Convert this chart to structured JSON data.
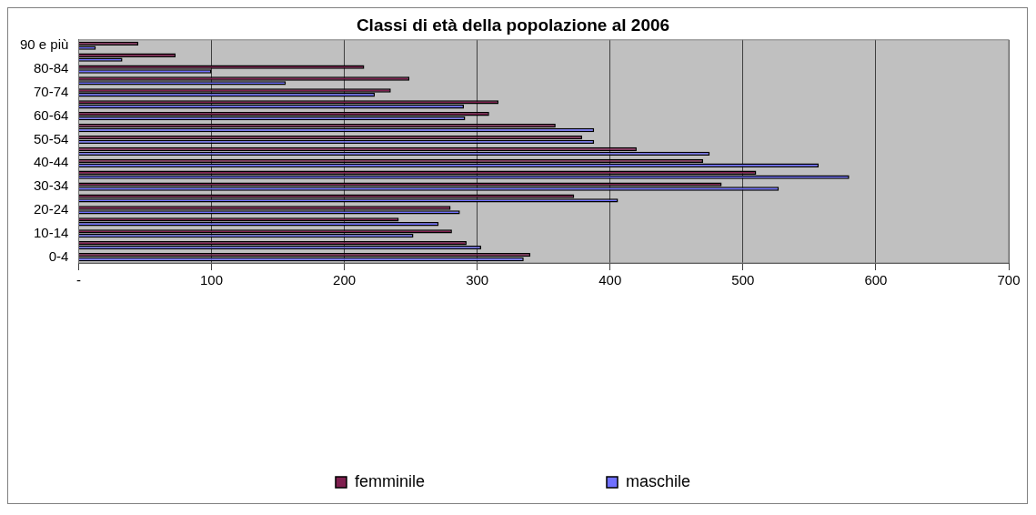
{
  "chart_data": {
    "type": "bar",
    "orientation": "horizontal",
    "title": "Classi di età della popolazione al 2006",
    "categories": [
      "90 e più",
      null,
      "80-84",
      null,
      "70-74",
      null,
      "60-64",
      null,
      "50-54",
      null,
      "40-44",
      null,
      "30-34",
      null,
      "20-24",
      null,
      "10-14",
      null,
      "0-4"
    ],
    "series": [
      {
        "name": "femminile",
        "color": "#7f1f4f",
        "values": [
          45,
          73,
          215,
          249,
          235,
          316,
          309,
          359,
          379,
          420,
          470,
          510,
          484,
          373,
          280,
          241,
          281,
          292,
          340
        ]
      },
      {
        "name": "maschile",
        "color": "#7070ff",
        "values": [
          13,
          33,
          100,
          156,
          223,
          290,
          291,
          388,
          388,
          475,
          557,
          580,
          527,
          406,
          287,
          271,
          252,
          303,
          335
        ]
      }
    ],
    "xlim": [
      0,
      700
    ],
    "xticks": [
      {
        "value": 0,
        "label": "-"
      },
      100,
      200,
      300,
      400,
      500,
      600,
      700
    ],
    "grid": "x",
    "legend": "bottom"
  }
}
